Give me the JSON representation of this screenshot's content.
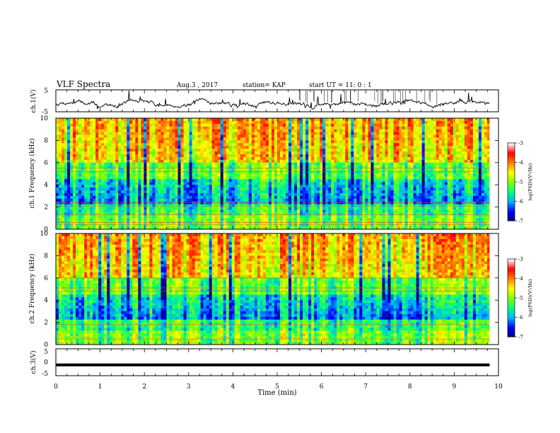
{
  "header": {
    "title": "VLF Spectra",
    "date": "Aug.3 , 2017",
    "station": "station= KAP",
    "start": "start UT = 11: 0 : 1"
  },
  "chart_data": [
    {
      "type": "line",
      "name": "ch1-waveform",
      "ylabel": "ch.1(V)",
      "ylim": [
        -5,
        5
      ],
      "yticks": [
        "-5",
        "5"
      ],
      "xlim": [
        0,
        10
      ],
      "color": "#000000"
    },
    {
      "type": "heatmap",
      "name": "ch1-spectrogram",
      "ylabel": "ch.1 Frequency (kHz)",
      "ylim": [
        0,
        10
      ],
      "yticks": [
        "0",
        "2",
        "4",
        "6",
        "8",
        "10"
      ],
      "xlim": [
        0,
        10
      ],
      "colorbar": {
        "label": "log(PSD)(V²/Hz)",
        "range": [
          -7,
          -3
        ],
        "ticks": [
          "-3",
          "-4",
          "-5",
          "-6",
          "-7"
        ],
        "colors": [
          "#000080",
          "#0000ff",
          "#00b0ff",
          "#00ff80",
          "#80ff00",
          "#ffff00",
          "#ff8000",
          "#ff0000",
          "#ffffff"
        ]
      }
    },
    {
      "type": "heatmap",
      "name": "ch2-spectrogram",
      "ylabel": "ch.2 Frequency (kHz)",
      "ylim": [
        0,
        10
      ],
      "yticks": [
        "0",
        "2",
        "4",
        "6",
        "8",
        "10"
      ],
      "xlim": [
        0,
        10
      ],
      "colorbar": {
        "label": "log(PSD)(V²/Hz)",
        "range": [
          -7,
          -3
        ],
        "ticks": [
          "-3",
          "-4",
          "-5",
          "-6",
          "-7"
        ],
        "colors": [
          "#000080",
          "#0000ff",
          "#00b0ff",
          "#00ff80",
          "#80ff00",
          "#ffff00",
          "#ff8000",
          "#ff0000",
          "#ffffff"
        ]
      }
    },
    {
      "type": "line",
      "name": "ch3-waveform",
      "ylabel": "ch.3(V)",
      "ylim": [
        -5,
        5
      ],
      "yticks": [
        "-5",
        "0",
        "5"
      ],
      "xlim": [
        0,
        10
      ],
      "color": "#000000"
    }
  ],
  "xaxis": {
    "label": "Time (min)",
    "ticks": [
      "0",
      "1",
      "2",
      "3",
      "4",
      "5",
      "6",
      "7",
      "8",
      "9",
      "10"
    ]
  }
}
